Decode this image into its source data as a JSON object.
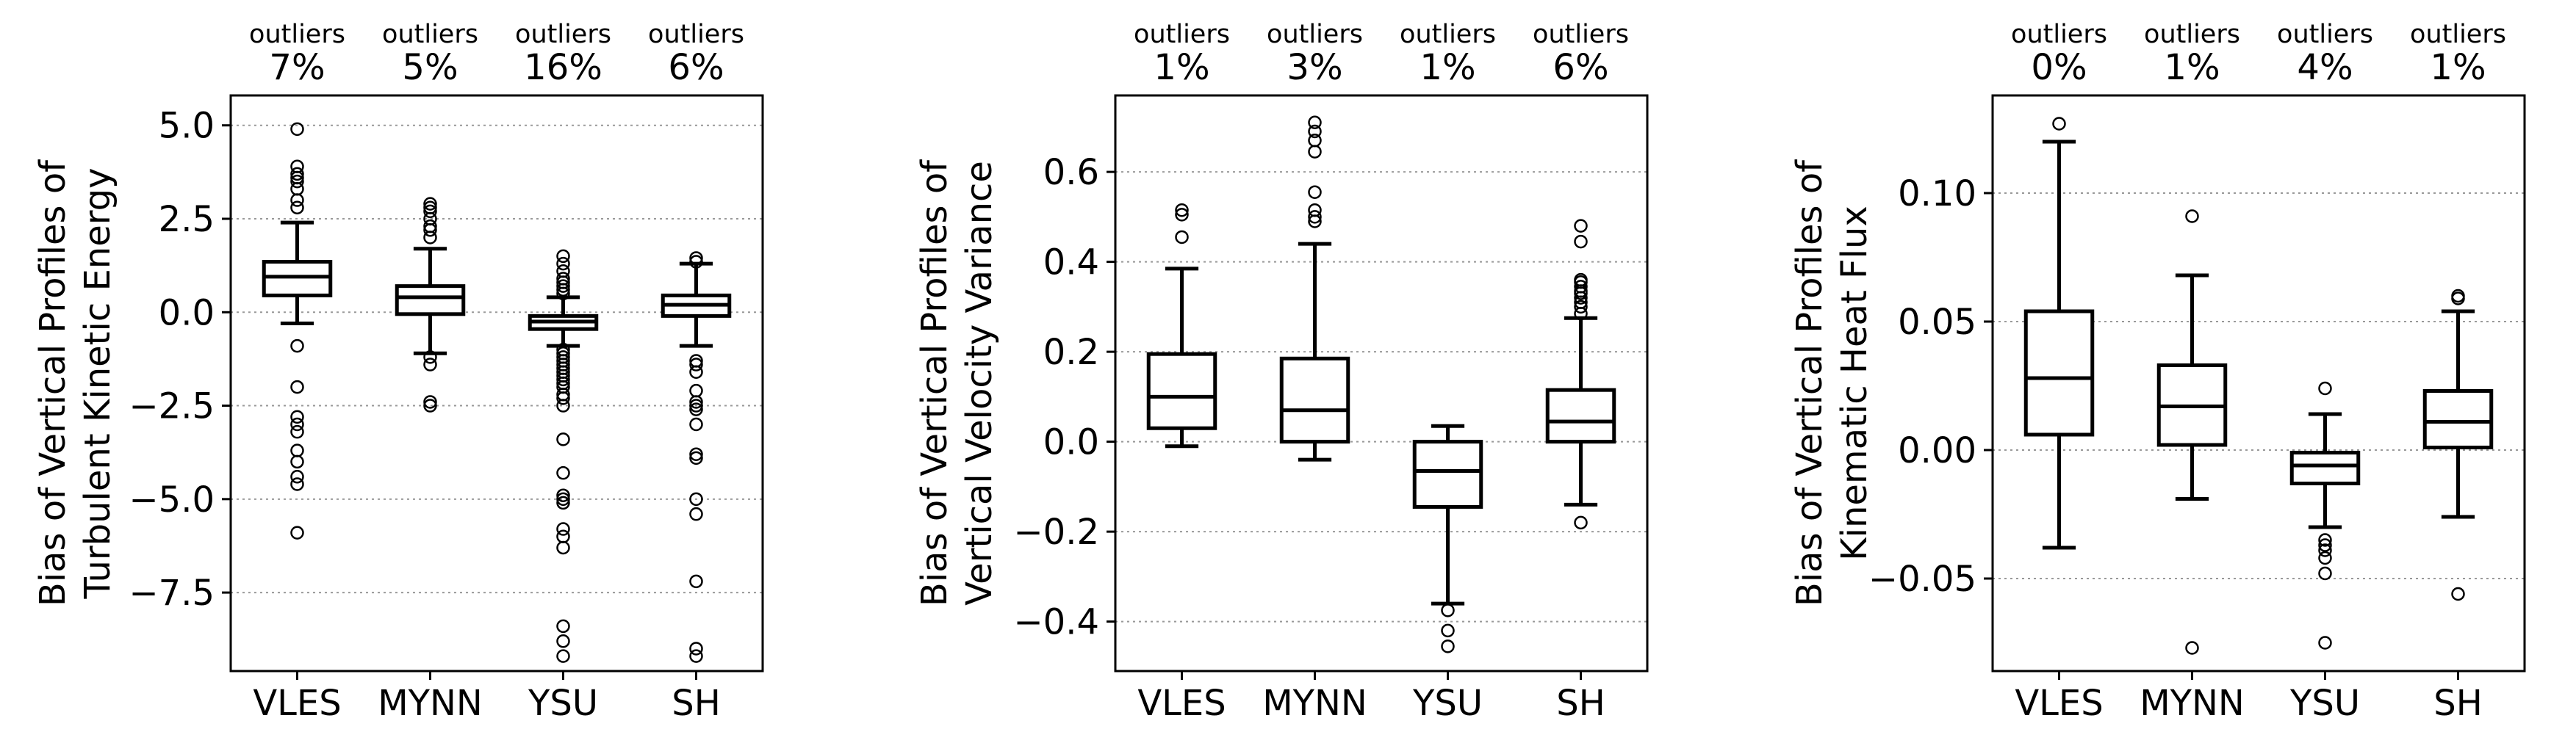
{
  "chart_data": [
    {
      "type": "box",
      "ylabel": "Bias of Vertical Profiles of\nTurbulent Kinetic Energy",
      "categories": [
        "VLES",
        "MYNN",
        "YSU",
        "SH"
      ],
      "outlier_label": "outliers",
      "outlier_percent": [
        "7%",
        "5%",
        "16%",
        "6%"
      ],
      "ylim": [
        -9.6,
        5.8
      ],
      "yticks": [
        5.0,
        2.5,
        0.0,
        -2.5,
        -5.0,
        -7.5
      ],
      "ytick_labels": [
        "5.0",
        "2.5",
        "0.0",
        "−2.5",
        "−5.0",
        "−7.5"
      ],
      "grid": "horizontal-dotted",
      "boxes": [
        {
          "name": "VLES",
          "whisker_low": -0.3,
          "q1": 0.45,
          "median": 0.95,
          "q3": 1.35,
          "whisker_high": 2.4,
          "outliers": [
            4.9,
            3.9,
            3.7,
            3.6,
            3.5,
            3.3,
            3.0,
            2.8,
            -0.9,
            -2.0,
            -2.8,
            -3.0,
            -3.2,
            -3.7,
            -4.0,
            -4.4,
            -4.6,
            -5.9
          ]
        },
        {
          "name": "MYNN",
          "whisker_low": -1.1,
          "q1": -0.05,
          "median": 0.4,
          "q3": 0.7,
          "whisker_high": 1.7,
          "outliers": [
            2.9,
            2.8,
            2.7,
            2.5,
            2.3,
            2.2,
            2.0,
            -1.2,
            -1.4,
            -2.4,
            -2.5
          ]
        },
        {
          "name": "YSU",
          "whisker_low": -0.9,
          "q1": -0.45,
          "median": -0.25,
          "q3": -0.1,
          "whisker_high": 0.4,
          "outliers": [
            1.5,
            1.3,
            1.1,
            0.9,
            0.8,
            0.7,
            0.6,
            0.5,
            -1.0,
            -1.1,
            -1.2,
            -1.3,
            -1.4,
            -1.5,
            -1.6,
            -1.7,
            -1.8,
            -1.9,
            -2.0,
            -2.2,
            -2.3,
            -2.5,
            -3.4,
            -4.3,
            -4.9,
            -5.0,
            -5.1,
            -5.8,
            -6.0,
            -6.3,
            -8.4,
            -8.8,
            -9.2
          ]
        },
        {
          "name": "SH",
          "whisker_low": -0.9,
          "q1": -0.1,
          "median": 0.2,
          "q3": 0.45,
          "whisker_high": 1.3,
          "outliers": [
            1.45,
            1.35,
            -1.3,
            -1.4,
            -1.6,
            -2.1,
            -2.4,
            -2.5,
            -2.6,
            -3.0,
            -3.8,
            -3.9,
            -5.0,
            -5.4,
            -7.2,
            -9.0,
            -9.2
          ]
        }
      ]
    },
    {
      "type": "box",
      "ylabel": "Bias of Vertical Profiles of\nVertical Velocity Variance",
      "categories": [
        "VLES",
        "MYNN",
        "YSU",
        "SH"
      ],
      "outlier_label": "outliers",
      "outlier_percent": [
        "1%",
        "3%",
        "1%",
        "6%"
      ],
      "ylim": [
        -0.51,
        0.77
      ],
      "yticks": [
        0.6,
        0.4,
        0.2,
        0.0,
        -0.2,
        -0.4
      ],
      "ytick_labels": [
        "0.6",
        "0.4",
        "0.2",
        "0.0",
        "−0.2",
        "−0.4"
      ],
      "grid": "horizontal-dotted",
      "boxes": [
        {
          "name": "VLES",
          "whisker_low": -0.01,
          "q1": 0.03,
          "median": 0.1,
          "q3": 0.195,
          "whisker_high": 0.385,
          "outliers": [
            0.515,
            0.505,
            0.455
          ]
        },
        {
          "name": "MYNN",
          "whisker_low": -0.04,
          "q1": 0.0,
          "median": 0.07,
          "q3": 0.185,
          "whisker_high": 0.44,
          "outliers": [
            0.71,
            0.69,
            0.67,
            0.645,
            0.555,
            0.515,
            0.5,
            0.49
          ]
        },
        {
          "name": "YSU",
          "whisker_low": -0.36,
          "q1": -0.145,
          "median": -0.065,
          "q3": 0.0,
          "whisker_high": 0.035,
          "outliers": [
            -0.375,
            -0.42,
            -0.455
          ]
        },
        {
          "name": "SH",
          "whisker_low": -0.14,
          "q1": 0.0,
          "median": 0.045,
          "q3": 0.115,
          "whisker_high": 0.275,
          "outliers": [
            0.48,
            0.445,
            0.36,
            0.355,
            0.345,
            0.335,
            0.33,
            0.32,
            0.31,
            0.3,
            0.285,
            -0.18
          ]
        }
      ]
    },
    {
      "type": "box",
      "ylabel": "Bias of Vertical Profiles of\nKinematic Heat Flux",
      "categories": [
        "VLES",
        "MYNN",
        "YSU",
        "SH"
      ],
      "outlier_label": "outliers",
      "outlier_percent": [
        "0%",
        "1%",
        "4%",
        "1%"
      ],
      "ylim": [
        -0.086,
        0.138
      ],
      "yticks": [
        0.1,
        0.05,
        0.0,
        -0.05
      ],
      "ytick_labels": [
        "0.10",
        "0.05",
        "0.00",
        "−0.05"
      ],
      "grid": "horizontal-dotted",
      "boxes": [
        {
          "name": "VLES",
          "whisker_low": -0.038,
          "q1": 0.006,
          "median": 0.028,
          "q3": 0.054,
          "whisker_high": 0.12,
          "outliers": [
            0.127
          ]
        },
        {
          "name": "MYNN",
          "whisker_low": -0.019,
          "q1": 0.002,
          "median": 0.017,
          "q3": 0.033,
          "whisker_high": 0.068,
          "outliers": [
            0.091,
            -0.077
          ]
        },
        {
          "name": "YSU",
          "whisker_low": -0.03,
          "q1": -0.013,
          "median": -0.006,
          "q3": -0.001,
          "whisker_high": 0.014,
          "outliers": [
            0.024,
            -0.035,
            -0.037,
            -0.039,
            -0.042,
            -0.048,
            -0.075
          ]
        },
        {
          "name": "SH",
          "whisker_low": -0.026,
          "q1": 0.001,
          "median": 0.011,
          "q3": 0.023,
          "whisker_high": 0.054,
          "outliers": [
            0.06,
            0.059,
            -0.056
          ]
        }
      ]
    }
  ]
}
